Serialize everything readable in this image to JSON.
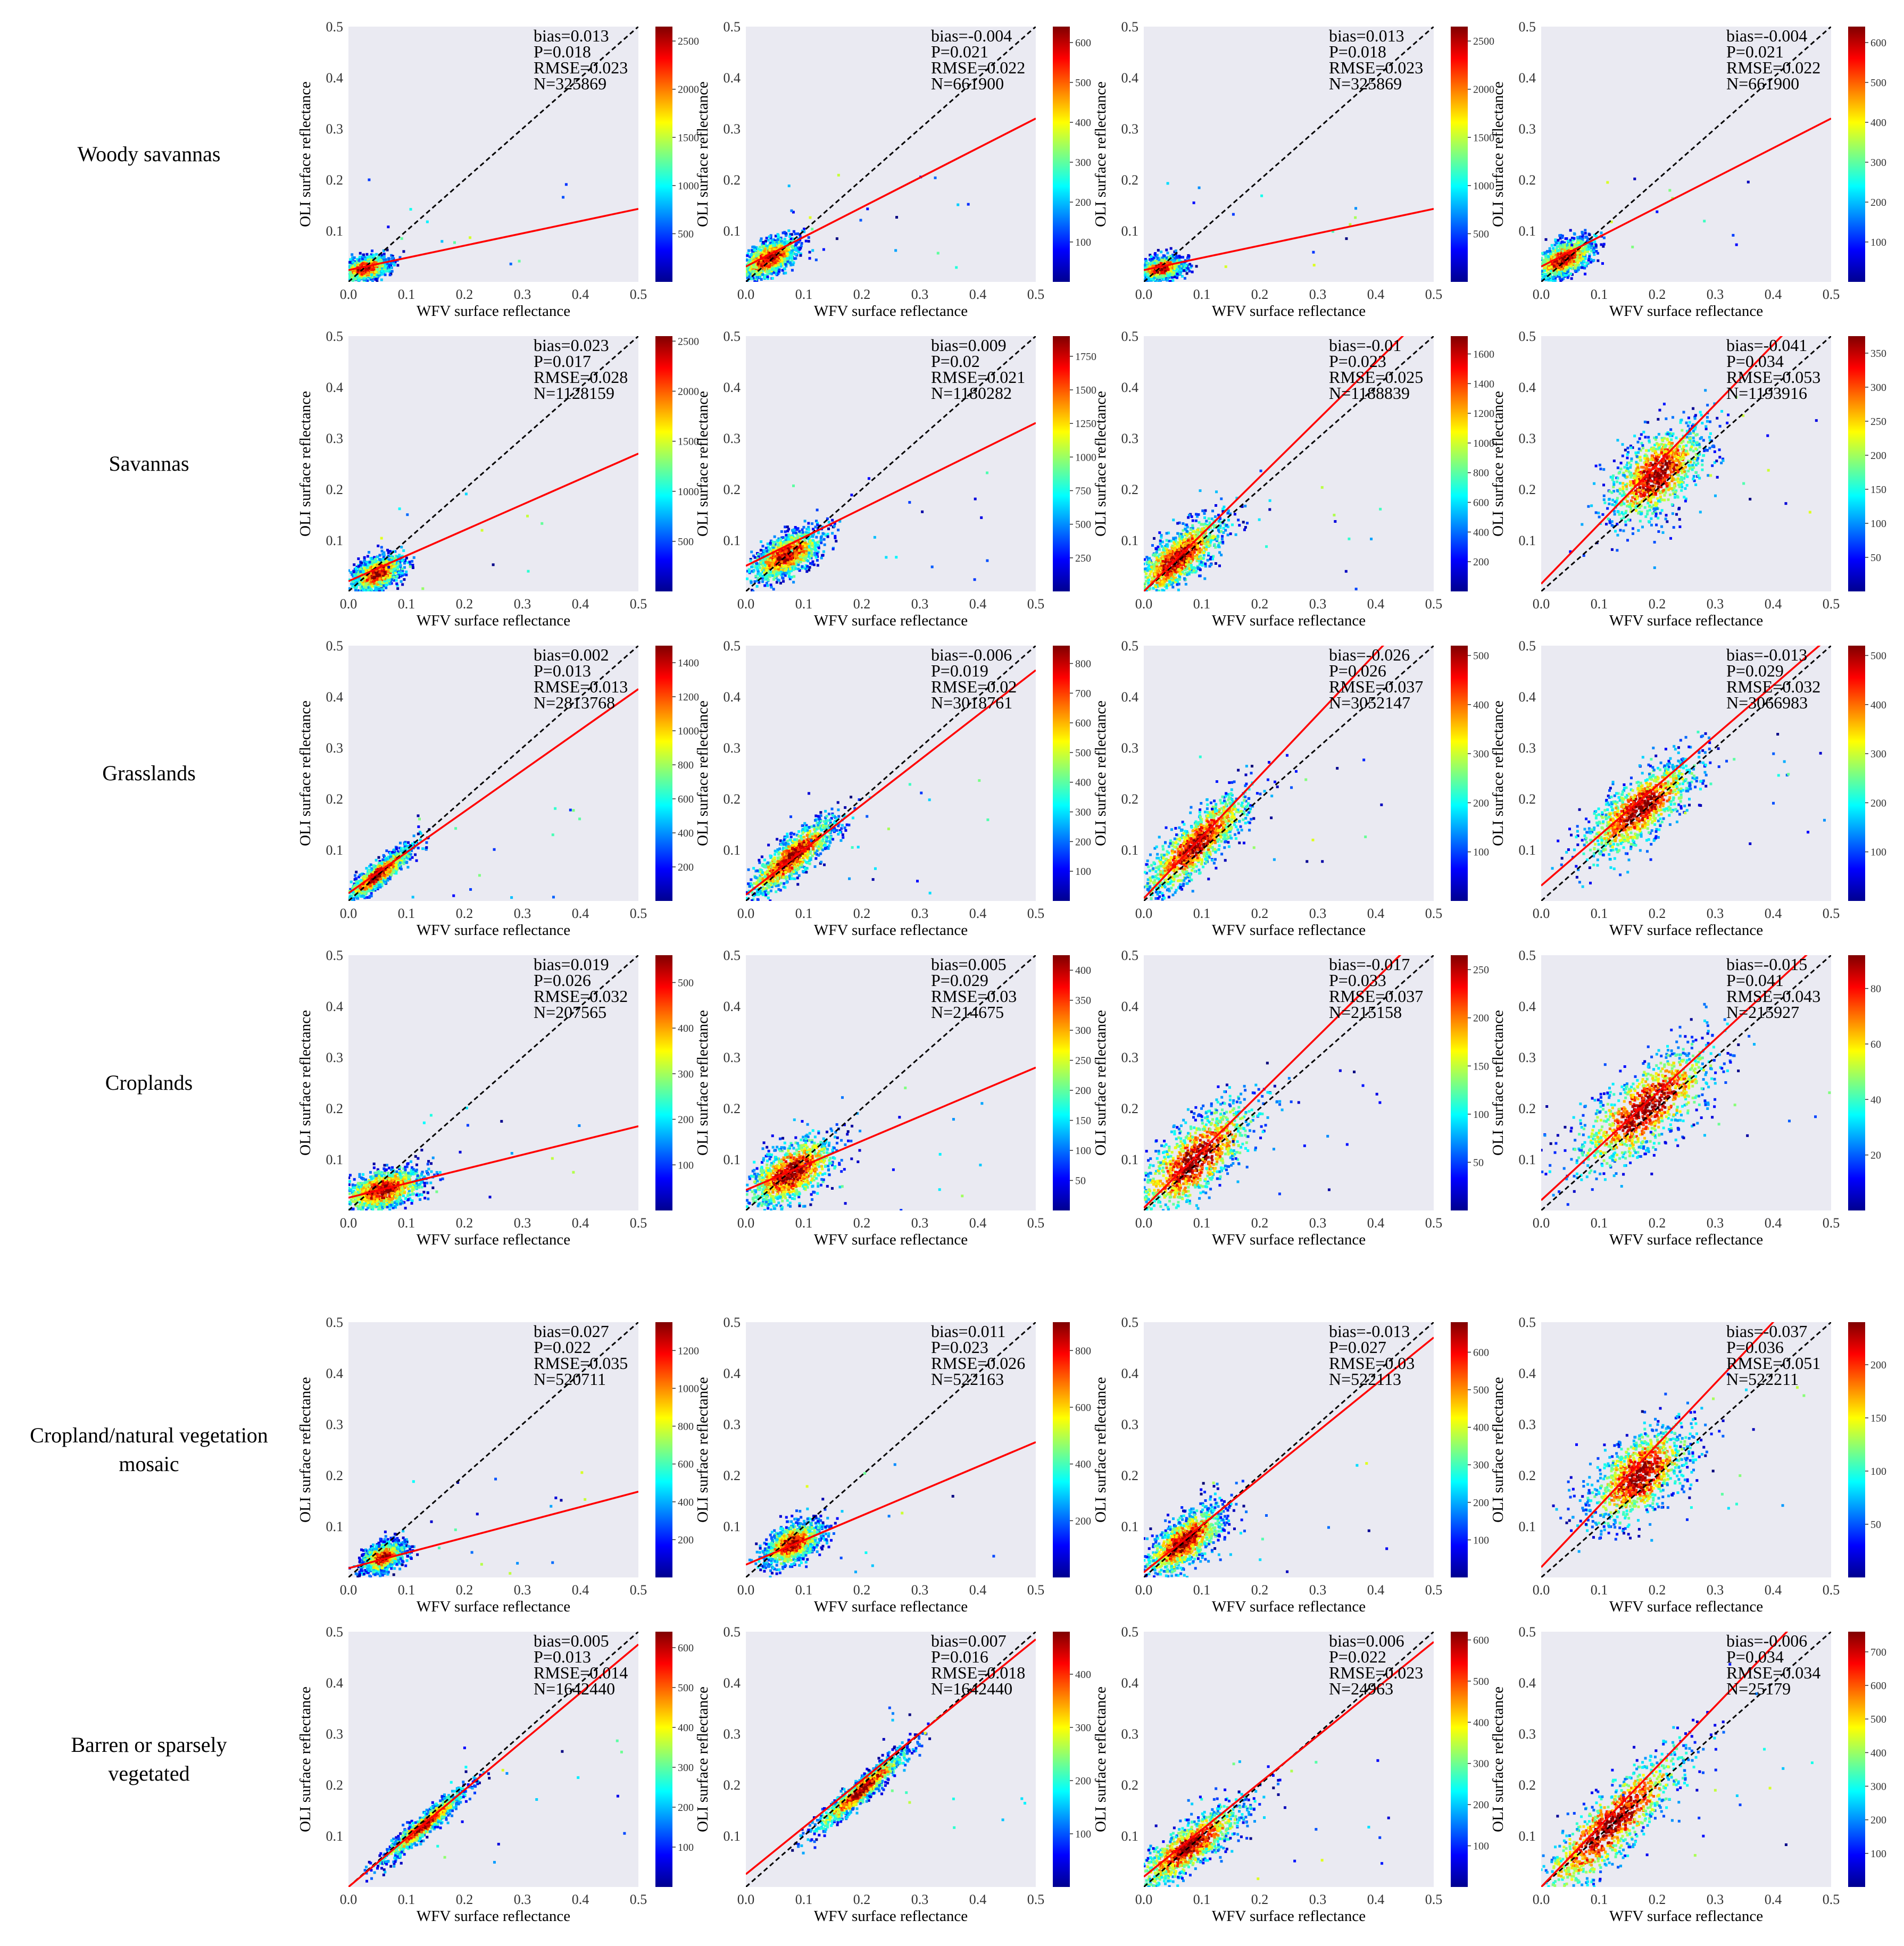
{
  "figure": {
    "x_axis_label": "WFV surface reflectance",
    "y_axis_label": "OLI surface reflectance",
    "axis_range": [
      0,
      0.5
    ],
    "ticks": [
      "0.0",
      "0.1",
      "0.2",
      "0.3",
      "0.4",
      "0.5"
    ],
    "y_ticks": [
      "0.1",
      "0.2",
      "0.3",
      "0.4",
      "0.5"
    ]
  },
  "rows": [
    {
      "label_lines": [
        "Woody savannas"
      ]
    },
    {
      "label_lines": [
        "Savannas"
      ]
    },
    {
      "label_lines": [
        "Grasslands"
      ]
    },
    {
      "label_lines": [
        "Croplands"
      ]
    },
    {
      "label_lines": [
        "Cropland/natural vegetation",
        "mosaic"
      ]
    },
    {
      "label_lines": [
        "Barren or sparsely",
        "vegetated"
      ]
    }
  ],
  "chart_data": [
    {
      "type": "scatter",
      "row": 0,
      "col": 0,
      "xlabel": "WFV surface reflectance",
      "ylabel": "OLI surface reflectance",
      "xlim": [
        0,
        0.5
      ],
      "ylim": [
        0,
        0.5
      ],
      "stats": [
        "bias=0.013",
        "P=0.018",
        "RMSE=0.023",
        "N=325869"
      ],
      "fit": {
        "slope": 0.24,
        "intercept": 0.023
      },
      "cluster": {
        "cx": 0.03,
        "cy": 0.026,
        "sx": 0.02,
        "sy": 0.012,
        "r": 0.35
      },
      "colorbar": {
        "ticks": [
          500,
          1000,
          1500,
          2000,
          2500
        ],
        "max": 2650
      }
    },
    {
      "type": "scatter",
      "row": 0,
      "col": 1,
      "xlabel": "WFV surface reflectance",
      "ylabel": "OLI surface reflectance",
      "xlim": [
        0,
        0.5
      ],
      "ylim": [
        0,
        0.5
      ],
      "stats": [
        "bias=-0.004",
        "P=0.021",
        "RMSE=0.022",
        "N=661900"
      ],
      "fit": {
        "slope": 0.58,
        "intercept": 0.03
      },
      "cluster": {
        "cx": 0.04,
        "cy": 0.045,
        "sx": 0.025,
        "sy": 0.02,
        "r": 0.55
      },
      "colorbar": {
        "ticks": [
          100,
          200,
          300,
          400,
          500,
          600
        ],
        "max": 640
      }
    },
    {
      "type": "scatter",
      "row": 0,
      "col": 2,
      "xlabel": "WFV surface reflectance",
      "ylabel": "OLI surface reflectance",
      "xlim": [
        0,
        0.5
      ],
      "ylim": [
        0,
        0.5
      ],
      "stats": [
        "bias=0.013",
        "P=0.018",
        "RMSE=0.023",
        "N=325869"
      ],
      "fit": {
        "slope": 0.24,
        "intercept": 0.023
      },
      "cluster": {
        "cx": 0.03,
        "cy": 0.026,
        "sx": 0.02,
        "sy": 0.012,
        "r": 0.35
      },
      "colorbar": {
        "ticks": [
          500,
          1000,
          1500,
          2000,
          2500
        ],
        "max": 2650
      }
    },
    {
      "type": "scatter",
      "row": 0,
      "col": 3,
      "xlabel": "WFV surface reflectance",
      "ylabel": "OLI surface reflectance",
      "xlim": [
        0,
        0.5
      ],
      "ylim": [
        0,
        0.5
      ],
      "stats": [
        "bias=-0.004",
        "P=0.021",
        "RMSE=0.022",
        "N=661900"
      ],
      "fit": {
        "slope": 0.58,
        "intercept": 0.03
      },
      "cluster": {
        "cx": 0.04,
        "cy": 0.045,
        "sx": 0.025,
        "sy": 0.02,
        "r": 0.55
      },
      "colorbar": {
        "ticks": [
          100,
          200,
          300,
          400,
          500,
          600
        ],
        "max": 640
      }
    },
    {
      "type": "scatter",
      "row": 1,
      "col": 0,
      "xlabel": "WFV surface reflectance",
      "ylabel": "OLI surface reflectance",
      "xlim": [
        0,
        0.5
      ],
      "ylim": [
        0,
        0.5
      ],
      "stats": [
        "bias=0.023",
        "P=0.017",
        "RMSE=0.028",
        "N=1128159"
      ],
      "fit": {
        "slope": 0.5,
        "intercept": 0.02
      },
      "cluster": {
        "cx": 0.05,
        "cy": 0.035,
        "sx": 0.022,
        "sy": 0.018,
        "r": 0.45
      },
      "colorbar": {
        "ticks": [
          500,
          1000,
          1500,
          2000,
          2500
        ],
        "max": 2550
      }
    },
    {
      "type": "scatter",
      "row": 1,
      "col": 1,
      "xlabel": "WFV surface reflectance",
      "ylabel": "OLI surface reflectance",
      "xlim": [
        0,
        0.5
      ],
      "ylim": [
        0,
        0.5
      ],
      "stats": [
        "bias=0.009",
        "P=0.02",
        "RMSE=0.021",
        "N=1180282"
      ],
      "fit": {
        "slope": 0.56,
        "intercept": 0.05
      },
      "cluster": {
        "cx": 0.07,
        "cy": 0.07,
        "sx": 0.03,
        "sy": 0.025,
        "r": 0.6
      },
      "colorbar": {
        "ticks": [
          250,
          500,
          750,
          1000,
          1250,
          1500,
          1750
        ],
        "max": 1900
      }
    },
    {
      "type": "scatter",
      "row": 1,
      "col": 2,
      "xlabel": "WFV surface reflectance",
      "ylabel": "OLI surface reflectance",
      "xlim": [
        0,
        0.5
      ],
      "ylim": [
        0,
        0.5
      ],
      "stats": [
        "bias=-0.01",
        "P=0.023",
        "RMSE=0.025",
        "N=1188839"
      ],
      "fit": {
        "slope": 1.12,
        "intercept": 0.0
      },
      "cluster": {
        "cx": 0.06,
        "cy": 0.065,
        "sx": 0.04,
        "sy": 0.04,
        "r": 0.75
      },
      "colorbar": {
        "ticks": [
          200,
          400,
          600,
          800,
          1000,
          1200,
          1400,
          1600
        ],
        "max": 1720
      }
    },
    {
      "type": "scatter",
      "row": 1,
      "col": 3,
      "xlabel": "WFV surface reflectance",
      "ylabel": "OLI surface reflectance",
      "xlim": [
        0,
        0.5
      ],
      "ylim": [
        0,
        0.5
      ],
      "stats": [
        "bias=-0.041",
        "P=0.034",
        "RMSE=0.053",
        "N=1193916"
      ],
      "fit": {
        "slope": 1.17,
        "intercept": 0.015
      },
      "cluster": {
        "cx": 0.2,
        "cy": 0.23,
        "sx": 0.045,
        "sy": 0.05,
        "r": 0.6
      },
      "colorbar": {
        "ticks": [
          50,
          100,
          150,
          200,
          250,
          300,
          350
        ],
        "max": 375
      }
    },
    {
      "type": "scatter",
      "row": 2,
      "col": 0,
      "xlabel": "WFV surface reflectance",
      "ylabel": "OLI surface reflectance",
      "xlim": [
        0,
        0.5
      ],
      "ylim": [
        0,
        0.5
      ],
      "stats": [
        "bias=0.002",
        "P=0.013",
        "RMSE=0.013",
        "N=2813768"
      ],
      "fit": {
        "slope": 0.8,
        "intercept": 0.015
      },
      "cluster": {
        "cx": 0.05,
        "cy": 0.05,
        "sx": 0.03,
        "sy": 0.028,
        "r": 0.9
      },
      "colorbar": {
        "ticks": [
          200,
          400,
          600,
          800,
          1000,
          1200,
          1400
        ],
        "max": 1500
      }
    },
    {
      "type": "scatter",
      "row": 2,
      "col": 1,
      "xlabel": "WFV surface reflectance",
      "ylabel": "OLI surface reflectance",
      "xlim": [
        0,
        0.5
      ],
      "ylim": [
        0,
        0.5
      ],
      "stats": [
        "bias=-0.006",
        "P=0.019",
        "RMSE=0.02",
        "N=3018761"
      ],
      "fit": {
        "slope": 0.88,
        "intercept": 0.012
      },
      "cluster": {
        "cx": 0.08,
        "cy": 0.085,
        "sx": 0.04,
        "sy": 0.04,
        "r": 0.85
      },
      "colorbar": {
        "ticks": [
          100,
          200,
          300,
          400,
          500,
          600,
          700,
          800
        ],
        "max": 860
      }
    },
    {
      "type": "scatter",
      "row": 2,
      "col": 2,
      "xlabel": "WFV surface reflectance",
      "ylabel": "OLI surface reflectance",
      "xlim": [
        0,
        0.5
      ],
      "ylim": [
        0,
        0.5
      ],
      "stats": [
        "bias=-0.026",
        "P=0.026",
        "RMSE=0.037",
        "N=3052147"
      ],
      "fit": {
        "slope": 1.2,
        "intercept": 0.005
      },
      "cluster": {
        "cx": 0.09,
        "cy": 0.11,
        "sx": 0.05,
        "sy": 0.055,
        "r": 0.85
      },
      "colorbar": {
        "ticks": [
          100,
          200,
          300,
          400,
          500
        ],
        "max": 520
      }
    },
    {
      "type": "scatter",
      "row": 2,
      "col": 3,
      "xlabel": "WFV surface reflectance",
      "ylabel": "OLI surface reflectance",
      "xlim": [
        0,
        0.5
      ],
      "ylim": [
        0,
        0.5
      ],
      "stats": [
        "bias=-0.013",
        "P=0.029",
        "RMSE=0.032",
        "N=3066983"
      ],
      "fit": {
        "slope": 0.98,
        "intercept": 0.03
      },
      "cluster": {
        "cx": 0.17,
        "cy": 0.18,
        "sx": 0.05,
        "sy": 0.05,
        "r": 0.75
      },
      "colorbar": {
        "ticks": [
          100,
          200,
          300,
          400,
          500
        ],
        "max": 520
      }
    },
    {
      "type": "scatter",
      "row": 3,
      "col": 0,
      "xlabel": "WFV surface reflectance",
      "ylabel": "OLI surface reflectance",
      "xlim": [
        0,
        0.5
      ],
      "ylim": [
        0,
        0.5
      ],
      "stats": [
        "bias=0.019",
        "P=0.026",
        "RMSE=0.032",
        "N=207565"
      ],
      "fit": {
        "slope": 0.28,
        "intercept": 0.025
      },
      "cluster": {
        "cx": 0.06,
        "cy": 0.04,
        "sx": 0.035,
        "sy": 0.022,
        "r": 0.45
      },
      "colorbar": {
        "ticks": [
          100,
          200,
          300,
          400,
          500
        ],
        "max": 560
      }
    },
    {
      "type": "scatter",
      "row": 3,
      "col": 1,
      "xlabel": "WFV surface reflectance",
      "ylabel": "OLI surface reflectance",
      "xlim": [
        0,
        0.5
      ],
      "ylim": [
        0,
        0.5
      ],
      "stats": [
        "bias=0.005",
        "P=0.029",
        "RMSE=0.03",
        "N=214675"
      ],
      "fit": {
        "slope": 0.48,
        "intercept": 0.04
      },
      "cluster": {
        "cx": 0.08,
        "cy": 0.075,
        "sx": 0.04,
        "sy": 0.035,
        "r": 0.55
      },
      "colorbar": {
        "ticks": [
          50,
          100,
          150,
          200,
          250,
          300,
          350,
          400
        ],
        "max": 425
      }
    },
    {
      "type": "scatter",
      "row": 3,
      "col": 2,
      "xlabel": "WFV surface reflectance",
      "ylabel": "OLI surface reflectance",
      "xlim": [
        0,
        0.5
      ],
      "ylim": [
        0,
        0.5
      ],
      "stats": [
        "bias=-0.017",
        "P=0.033",
        "RMSE=0.037",
        "N=215158"
      ],
      "fit": {
        "slope": 1.12,
        "intercept": 0.005
      },
      "cluster": {
        "cx": 0.09,
        "cy": 0.1,
        "sx": 0.055,
        "sy": 0.06,
        "r": 0.75
      },
      "colorbar": {
        "ticks": [
          50,
          100,
          150,
          200,
          250
        ],
        "max": 265
      }
    },
    {
      "type": "scatter",
      "row": 3,
      "col": 3,
      "xlabel": "WFV surface reflectance",
      "ylabel": "OLI surface reflectance",
      "xlim": [
        0,
        0.5
      ],
      "ylim": [
        0,
        0.5
      ],
      "stats": [
        "bias=-0.015",
        "P=0.041",
        "RMSE=0.043",
        "N=215927"
      ],
      "fit": {
        "slope": 1.05,
        "intercept": 0.02
      },
      "cluster": {
        "cx": 0.18,
        "cy": 0.2,
        "sx": 0.065,
        "sy": 0.065,
        "r": 0.75
      },
      "colorbar": {
        "ticks": [
          20,
          40,
          60,
          80
        ],
        "max": 92
      }
    },
    {
      "type": "scatter",
      "row": 4,
      "col": 0,
      "xlabel": "WFV surface reflectance",
      "ylabel": "OLI surface reflectance",
      "xlim": [
        0,
        0.5
      ],
      "ylim": [
        0,
        0.5
      ],
      "stats": [
        "bias=0.027",
        "P=0.022",
        "RMSE=0.035",
        "N=520711"
      ],
      "fit": {
        "slope": 0.3,
        "intercept": 0.018
      },
      "cluster": {
        "cx": 0.06,
        "cy": 0.04,
        "sx": 0.018,
        "sy": 0.015,
        "r": 0.4
      },
      "colorbar": {
        "ticks": [
          200,
          400,
          600,
          800,
          1000,
          1200
        ],
        "max": 1350
      }
    },
    {
      "type": "scatter",
      "row": 4,
      "col": 1,
      "xlabel": "WFV surface reflectance",
      "ylabel": "OLI surface reflectance",
      "xlim": [
        0,
        0.5
      ],
      "ylim": [
        0,
        0.5
      ],
      "stats": [
        "bias=0.011",
        "P=0.023",
        "RMSE=0.026",
        "N=522163"
      ],
      "fit": {
        "slope": 0.48,
        "intercept": 0.025
      },
      "cluster": {
        "cx": 0.08,
        "cy": 0.065,
        "sx": 0.025,
        "sy": 0.022,
        "r": 0.5
      },
      "colorbar": {
        "ticks": [
          200,
          400,
          600,
          800
        ],
        "max": 900
      }
    },
    {
      "type": "scatter",
      "row": 4,
      "col": 2,
      "xlabel": "WFV surface reflectance",
      "ylabel": "OLI surface reflectance",
      "xlim": [
        0,
        0.5
      ],
      "ylim": [
        0,
        0.5
      ],
      "stats": [
        "bias=-0.013",
        "P=0.027",
        "RMSE=0.03",
        "N=522113"
      ],
      "fit": {
        "slope": 0.92,
        "intercept": 0.01
      },
      "cluster": {
        "cx": 0.07,
        "cy": 0.07,
        "sx": 0.035,
        "sy": 0.035,
        "r": 0.7
      },
      "colorbar": {
        "ticks": [
          100,
          200,
          300,
          400,
          500,
          600
        ],
        "max": 680
      }
    },
    {
      "type": "scatter",
      "row": 4,
      "col": 3,
      "xlabel": "WFV surface reflectance",
      "ylabel": "OLI surface reflectance",
      "xlim": [
        0,
        0.5
      ],
      "ylim": [
        0,
        0.5
      ],
      "stats": [
        "bias=-0.037",
        "P=0.036",
        "RMSE=0.051",
        "N=522211"
      ],
      "fit": {
        "slope": 1.2,
        "intercept": 0.02
      },
      "cluster": {
        "cx": 0.17,
        "cy": 0.2,
        "sx": 0.045,
        "sy": 0.05,
        "r": 0.55
      },
      "colorbar": {
        "ticks": [
          50,
          100,
          150,
          200
        ],
        "max": 240
      }
    },
    {
      "type": "scatter",
      "row": 5,
      "col": 0,
      "xlabel": "WFV surface reflectance",
      "ylabel": "OLI surface reflectance",
      "xlim": [
        0,
        0.5
      ],
      "ylim": [
        0,
        0.5
      ],
      "stats": [
        "bias=0.005",
        "P=0.013",
        "RMSE=0.014",
        "N=1642440"
      ],
      "fit": {
        "slope": 0.95,
        "intercept": 0.0
      },
      "cluster": {
        "cx": 0.13,
        "cy": 0.12,
        "sx": 0.035,
        "sy": 0.035,
        "r": 0.95
      },
      "colorbar": {
        "ticks": [
          100,
          200,
          300,
          400,
          500,
          600
        ],
        "max": 640
      }
    },
    {
      "type": "scatter",
      "row": 5,
      "col": 1,
      "xlabel": "WFV surface reflectance",
      "ylabel": "OLI surface reflectance",
      "xlim": [
        0,
        0.5
      ],
      "ylim": [
        0,
        0.5
      ],
      "stats": [
        "bias=0.007",
        "P=0.016",
        "RMSE=0.018",
        "N=1642440"
      ],
      "fit": {
        "slope": 0.92,
        "intercept": 0.025
      },
      "cluster": {
        "cx": 0.2,
        "cy": 0.19,
        "sx": 0.04,
        "sy": 0.04,
        "r": 0.95
      },
      "colorbar": {
        "ticks": [
          100,
          200,
          300,
          400
        ],
        "max": 480
      }
    },
    {
      "type": "scatter",
      "row": 5,
      "col": 2,
      "xlabel": "WFV surface reflectance",
      "ylabel": "OLI surface reflectance",
      "xlim": [
        0,
        0.5
      ],
      "ylim": [
        0,
        0.5
      ],
      "stats": [
        "bias=0.006",
        "P=0.022",
        "RMSE=0.023",
        "N=24963"
      ],
      "fit": {
        "slope": 0.92,
        "intercept": 0.02
      },
      "cluster": {
        "cx": 0.08,
        "cy": 0.08,
        "sx": 0.05,
        "sy": 0.045,
        "r": 0.85
      },
      "colorbar": {
        "ticks": [
          100,
          200,
          300,
          400,
          500,
          600
        ],
        "max": 620
      }
    },
    {
      "type": "scatter",
      "row": 5,
      "col": 3,
      "xlabel": "WFV surface reflectance",
      "ylabel": "OLI surface reflectance",
      "xlim": [
        0,
        0.5
      ],
      "ylim": [
        0,
        0.5
      ],
      "stats": [
        "bias=-0.006",
        "P=0.034",
        "RMSE=0.034",
        "N=25179"
      ],
      "fit": {
        "slope": 1.18,
        "intercept": 0.0
      },
      "cluster": {
        "cx": 0.12,
        "cy": 0.12,
        "sx": 0.07,
        "sy": 0.08,
        "r": 0.88
      },
      "colorbar": {
        "ticks": [
          100,
          200,
          300,
          400,
          500,
          600,
          700
        ],
        "max": 760
      }
    }
  ]
}
